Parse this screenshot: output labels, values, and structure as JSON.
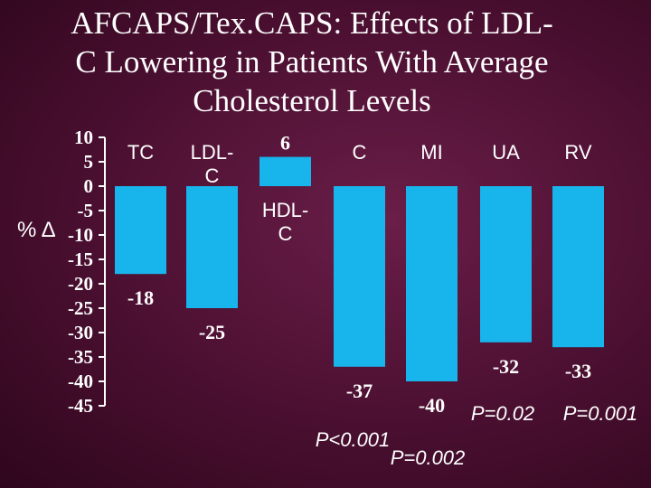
{
  "slide": {
    "title_lines": [
      "AFCAPS/Tex.CAPS: Effects of LDL-",
      "C Lowering in Patients With Average",
      "Cholesterol Levels"
    ]
  },
  "chart_data": {
    "type": "bar",
    "title": "AFCAPS/Tex.CAPS: Effects of LDL-C Lowering in Patients With Average Cholesterol Levels",
    "ylabel": "% Δ",
    "xlabel": "",
    "ylim": [
      -45,
      10
    ],
    "yticks": [
      10,
      5,
      0,
      -5,
      -10,
      -15,
      -20,
      -25,
      -30,
      -35,
      -40,
      -45
    ],
    "grid": false,
    "categories": [
      {
        "label_lines": [
          "TC"
        ],
        "value": -18,
        "p_value": ""
      },
      {
        "label_lines": [
          "LDL-",
          "C"
        ],
        "value": -25,
        "p_value": ""
      },
      {
        "label_lines": [
          "HDL-",
          "C"
        ],
        "value": 6,
        "p_value": ""
      },
      {
        "label_lines": [
          "C"
        ],
        "value": -37,
        "p_value": "P<0.001"
      },
      {
        "label_lines": [
          "MI"
        ],
        "value": -40,
        "p_value": "P=0.002"
      },
      {
        "label_lines": [
          "UA"
        ],
        "value": -32,
        "p_value": "P=0.02"
      },
      {
        "label_lines": [
          "RV"
        ],
        "value": -33,
        "p_value": "P=0.001"
      }
    ],
    "bar_color": "#18b4ec",
    "axis_color": "#ffffff"
  }
}
